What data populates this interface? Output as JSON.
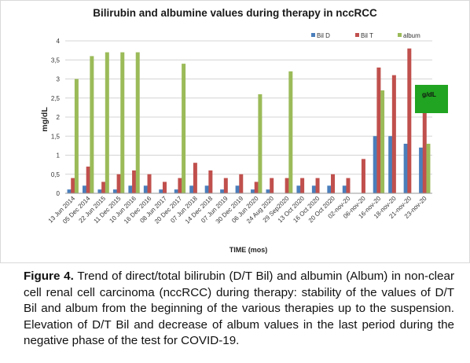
{
  "chart_data": {
    "type": "bar",
    "title": "Bilirubin and albumine values during therapy in nccRCC",
    "xlabel": "TIME (mos)",
    "ylabel": "mg/dL",
    "ylim": [
      0,
      4
    ],
    "yticks": [
      "0",
      "0,5",
      "1",
      "1,5",
      "2",
      "2,5",
      "3",
      "3,5",
      "4"
    ],
    "grid": true,
    "legend_position": "top-right",
    "annotation": "g/dL",
    "categories": [
      "13 Jun 2014",
      "05 Dec 2014",
      "22 Jun 2015",
      "11 Dec 2015",
      "10 Jun 2016",
      "16 Dec 2016",
      "08 Jun 2017",
      "20 Dec 2017",
      "07 Jun 2018",
      "14 Dec 2018",
      "07 Jun 2019",
      "30 Dec 2019",
      "06 Jun 2020",
      "24 Aug 2020",
      "29 Sep2020",
      "13 Oct 2020",
      "16 Oct 2020",
      "20 Oct 2020",
      "02-nov-20",
      "06-nov-20",
      "16-nov-20",
      "18-nov-20",
      "21-nov-20",
      "23-nov-20"
    ],
    "series": [
      {
        "name": "Bil D",
        "color": "#4a7ebb",
        "values": [
          0.1,
          0.2,
          0.1,
          0.1,
          0.2,
          0.2,
          0.1,
          0.1,
          0.2,
          0.2,
          0.1,
          0.2,
          0.1,
          0.1,
          null,
          0.2,
          0.2,
          0.2,
          0.2,
          null,
          1.5,
          1.5,
          1.3,
          1.2
        ]
      },
      {
        "name": "Bil T",
        "color": "#c0504d",
        "values": [
          0.4,
          0.7,
          0.3,
          0.5,
          0.6,
          0.5,
          0.3,
          0.4,
          0.8,
          0.6,
          0.4,
          0.5,
          0.3,
          0.4,
          0.4,
          0.4,
          0.4,
          0.5,
          0.4,
          0.9,
          3.3,
          3.1,
          3.8,
          2.2
        ]
      },
      {
        "name": "album",
        "color": "#9bbb59",
        "values": [
          3.0,
          3.6,
          3.7,
          3.7,
          3.7,
          null,
          null,
          3.4,
          null,
          null,
          null,
          null,
          2.6,
          null,
          3.2,
          null,
          null,
          null,
          null,
          null,
          2.7,
          null,
          null,
          1.3
        ]
      }
    ]
  },
  "caption": {
    "label": "Figure 4.",
    "text": "Trend of direct/total bilirubin (D/T Bil) and albumin (Album) in non-clear cell renal cell carcinoma (nccRCC) during therapy: stability of the values of D/T Bil and album from the beginning of the various therapies up to the suspension. Elevation of D/T Bil and decrease of album values in the last period during the negative phase of the test for COVID-19."
  }
}
